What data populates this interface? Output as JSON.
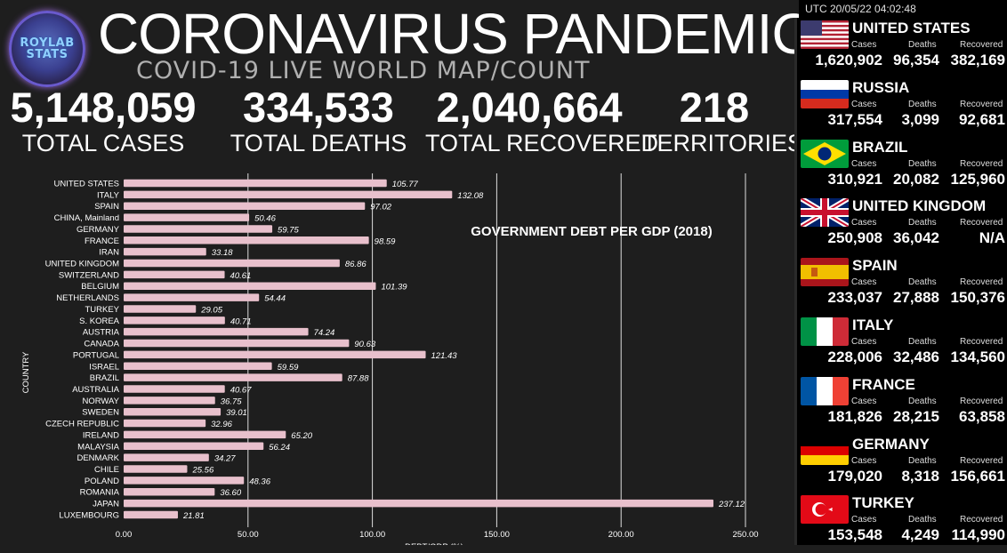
{
  "header": {
    "logo_line1": "ROYLAB",
    "logo_line2": "STATS",
    "title": "CORONAVIRUS PANDEMIC",
    "subtitle": "COVID-19 LIVE WORLD MAP/COUNT"
  },
  "totals": {
    "cases_value": "5,148,059",
    "cases_label": "TOTAL CASES",
    "deaths_value": "334,533",
    "deaths_label": "TOTAL DEATHS",
    "recovered_value": "2,040,664",
    "recovered_label": "TOTAL RECOVERED",
    "territories_value": "218",
    "territories_label": "TERRITORIES"
  },
  "clock": "UTC 20/05/22 04:02:48",
  "sidebar": {
    "cases_label": "Cases",
    "deaths_label": "Deaths",
    "recovered_label": "Recovered",
    "countries": [
      {
        "name": "UNITED STATES",
        "flag": "us-flag",
        "cases": "1,620,902",
        "deaths": "96,354",
        "recovered": "382,169"
      },
      {
        "name": "RUSSIA",
        "flag": "russia-flag",
        "cases": "317,554",
        "deaths": "3,099",
        "recovered": "92,681"
      },
      {
        "name": "BRAZIL",
        "flag": "brazil-flag",
        "cases": "310,921",
        "deaths": "20,082",
        "recovered": "125,960"
      },
      {
        "name": "UNITED KINGDOM",
        "flag": "uk-flag",
        "cases": "250,908",
        "deaths": "36,042",
        "recovered": "N/A"
      },
      {
        "name": "SPAIN",
        "flag": "spain-flag",
        "cases": "233,037",
        "deaths": "27,888",
        "recovered": "150,376"
      },
      {
        "name": "ITALY",
        "flag": "italy-flag",
        "cases": "228,006",
        "deaths": "32,486",
        "recovered": "134,560"
      },
      {
        "name": "FRANCE",
        "flag": "france-flag",
        "cases": "181,826",
        "deaths": "28,215",
        "recovered": "63,858"
      },
      {
        "name": "GERMANY",
        "flag": "germany-flag",
        "cases": "179,020",
        "deaths": "8,318",
        "recovered": "156,661"
      },
      {
        "name": "TURKEY",
        "flag": "turkey-flag",
        "cases": "153,548",
        "deaths": "4,249",
        "recovered": "114,990"
      }
    ]
  },
  "colors": {
    "bar": "#e8c0cc",
    "background": "#1e1e1e",
    "sidebar_bg": "#000000",
    "grid": "#ffffff"
  },
  "chart_data": {
    "type": "bar",
    "orientation": "horizontal",
    "title": "GOVERNMENT DEBT PER GDP (2018)",
    "ylabel": "COUNTRY",
    "xlabel": "DEBT/GDP (%)",
    "xlim": [
      0,
      250
    ],
    "xticks": [
      "0.00",
      "50.00",
      "100.00",
      "150.00",
      "200.00",
      "250.00"
    ],
    "grid": "vertical",
    "categories": [
      "UNITED STATES",
      "ITALY",
      "SPAIN",
      "CHINA, Mainland",
      "GERMANY",
      "FRANCE",
      "IRAN",
      "UNITED KINGDOM",
      "SWITZERLAND",
      "BELGIUM",
      "NETHERLANDS",
      "TURKEY",
      "S. KOREA",
      "AUSTRIA",
      "CANADA",
      "PORTUGAL",
      "ISRAEL",
      "BRAZIL",
      "AUSTRALIA",
      "NORWAY",
      "SWEDEN",
      "CZECH REPUBLIC",
      "IRELAND",
      "MALAYSIA",
      "DENMARK",
      "CHILE",
      "POLAND",
      "ROMANIA",
      "JAPAN",
      "LUXEMBOURG"
    ],
    "values": [
      105.77,
      132.08,
      97.02,
      50.46,
      59.75,
      98.59,
      33.18,
      86.86,
      40.61,
      101.39,
      54.44,
      29.05,
      40.71,
      74.24,
      90.63,
      121.43,
      59.59,
      87.88,
      40.67,
      36.75,
      39.01,
      32.96,
      65.2,
      56.24,
      34.27,
      25.56,
      48.36,
      36.6,
      237.12,
      21.81
    ],
    "labels": [
      "105.77",
      "132.08",
      "97.02",
      "50.46",
      "59.75",
      "98.59",
      "33.18",
      "86.86",
      "40.61",
      "101.39",
      "54.44",
      "29.05",
      "40.71",
      "74.24",
      "90.63",
      "121.43",
      "59.59",
      "87.88",
      "40.67",
      "36.75",
      "39.01",
      "32.96",
      "65.20",
      "56.24",
      "34.27",
      "25.56",
      "48.36",
      "36.60",
      "237.12",
      "21.81"
    ]
  }
}
